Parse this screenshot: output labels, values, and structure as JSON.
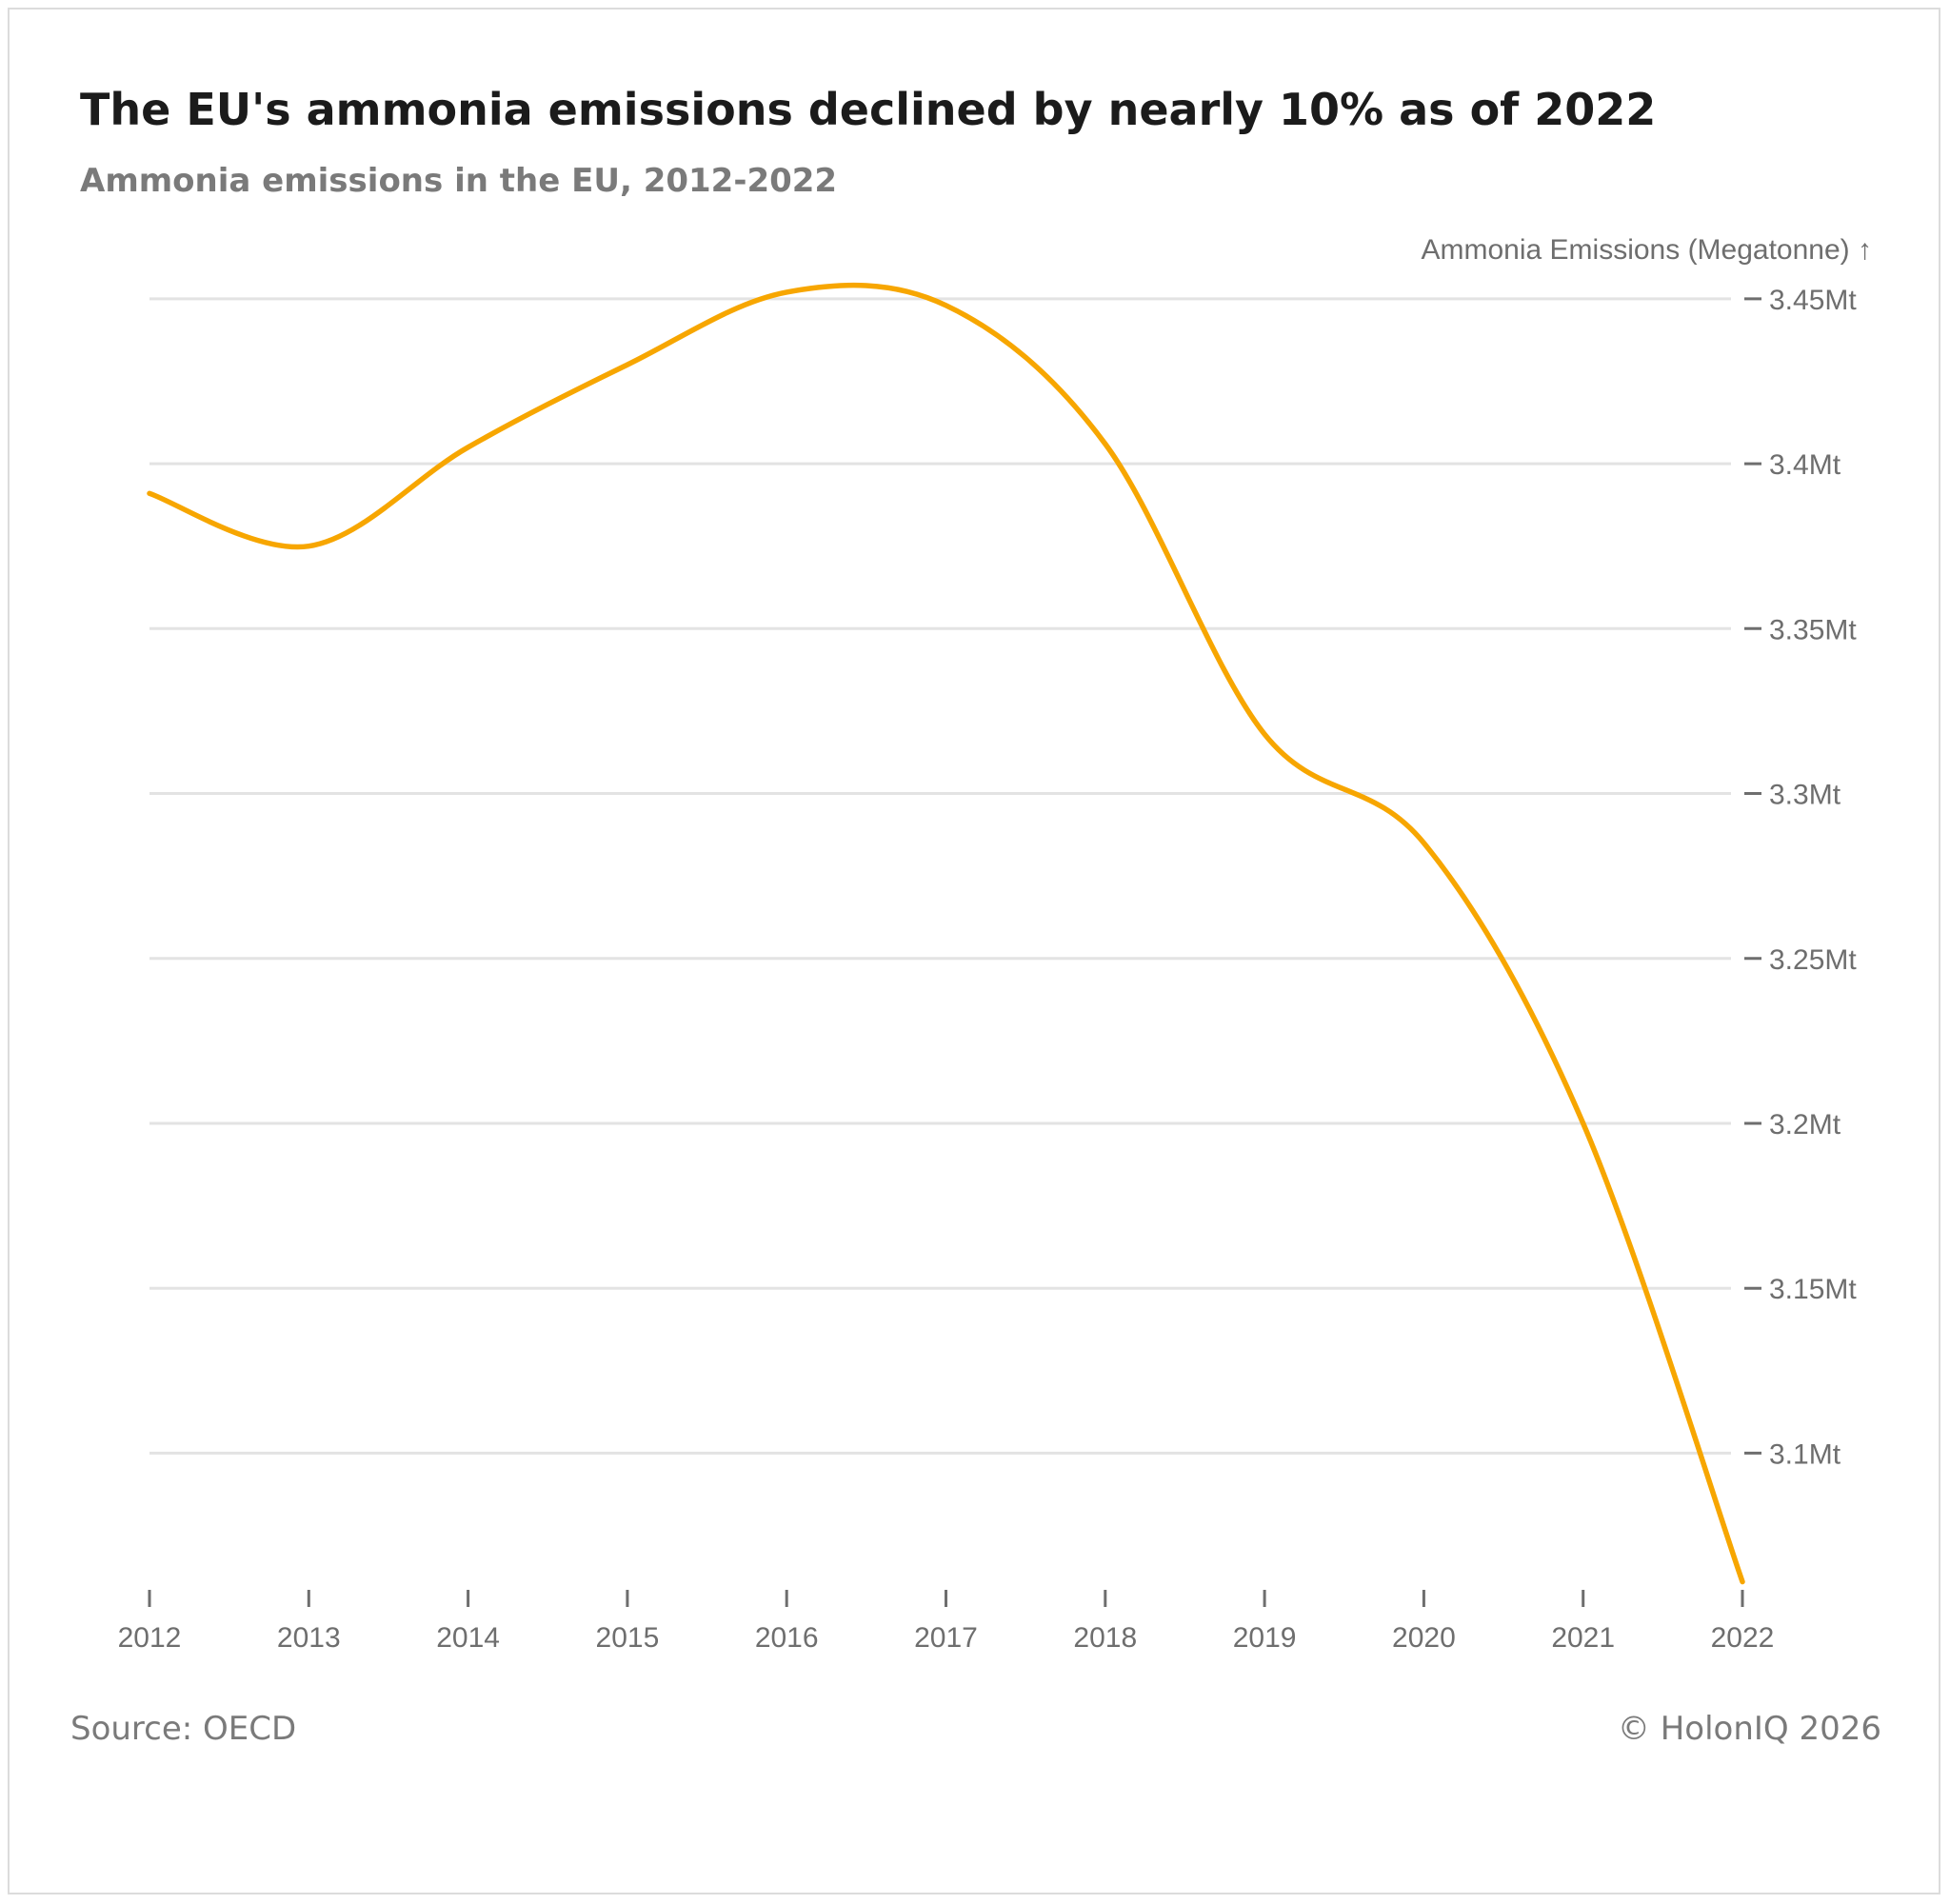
{
  "header": {
    "title": "The EU's ammonia emissions declined by nearly 10% as of 2022",
    "subtitle": "Ammonia emissions in the EU, 2012-2022"
  },
  "footer": {
    "source": "Source: OECD",
    "copyright": "© HolonIQ 2026"
  },
  "colors": {
    "line": "#F7A600",
    "grid": "#e3e3e3",
    "axis": "#6e6e6e"
  },
  "chart_data": {
    "type": "line",
    "title": "The EU's ammonia emissions declined by nearly 10% as of 2022",
    "subtitle": "Ammonia emissions in the EU, 2012-2022",
    "xlabel": "",
    "ylabel": "Ammonia Emissions (Megatonne) ↑",
    "x": [
      "2012",
      "2013",
      "2014",
      "2015",
      "2016",
      "2017",
      "2018",
      "2019",
      "2020",
      "2021",
      "2022"
    ],
    "series": [
      {
        "name": "Ammonia emissions",
        "values": [
          3.391,
          3.375,
          3.405,
          3.43,
          3.452,
          3.448,
          3.406,
          3.318,
          3.285,
          3.2,
          3.061
        ]
      }
    ],
    "ylim": [
      3.06,
      3.454
    ],
    "yticks": [
      3.1,
      3.15,
      3.2,
      3.25,
      3.3,
      3.35,
      3.4,
      3.45
    ],
    "ytick_labels": [
      "3.1Mt",
      "3.15Mt",
      "3.2Mt",
      "3.25Mt",
      "3.3Mt",
      "3.35Mt",
      "3.4Mt",
      "3.45Mt"
    ],
    "grid": true,
    "y_axis_side": "right",
    "legend": "none"
  }
}
